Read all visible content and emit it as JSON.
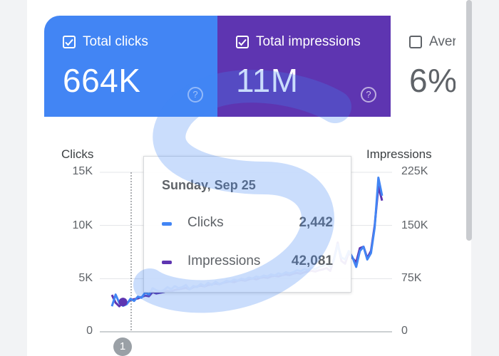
{
  "metrics": {
    "clicks": {
      "label": "Total clicks",
      "value": "664K",
      "checked": true,
      "color": "#4285f4"
    },
    "impressions": {
      "label": "Total impressions",
      "value": "11M",
      "checked": true,
      "color": "#5e35b1"
    },
    "position": {
      "label": "Aver",
      "value": "6%",
      "checked": false
    }
  },
  "help_glyph": "?",
  "chart": {
    "left_axis_title": "Clicks",
    "right_axis_title": "Impressions",
    "left_ticks": [
      "15K",
      "10K",
      "5K",
      "0"
    ],
    "right_ticks": [
      "225K",
      "150K",
      "75K",
      "0"
    ],
    "annotation_marker": "1"
  },
  "tooltip": {
    "date": "Sunday, Sep 25",
    "rows": [
      {
        "name": "Clicks",
        "value": "2,442",
        "color": "#4285f4"
      },
      {
        "name": "Impressions",
        "value": "42,081",
        "color": "#5e35b1"
      }
    ]
  },
  "chart_data": {
    "type": "line",
    "title": "",
    "ylabel": "Clicks",
    "y2label": "Impressions",
    "ylim": [
      0,
      15000
    ],
    "y2lim": [
      0,
      225000
    ],
    "grid": true,
    "series": [
      {
        "name": "Clicks",
        "axis": "left",
        "color": "#4285f4",
        "values": [
          2400,
          3500,
          2700,
          2442,
          2600,
          3100,
          2900,
          3300,
          3200,
          3700,
          3500,
          4100,
          3900,
          3800,
          3900,
          4200,
          4000,
          4300,
          4100,
          4200,
          4400,
          4000,
          4300,
          4200,
          4500,
          4300,
          4600,
          4400,
          4700,
          4500,
          4600,
          4800,
          4700,
          4900,
          4800,
          5000,
          4900,
          5100,
          5000,
          5200,
          5100,
          5300,
          5200,
          5400,
          5300,
          5500,
          5400,
          5600,
          5500,
          5600,
          5800,
          5700,
          5900,
          5800,
          6000,
          5900,
          6100,
          6200,
          6400,
          6100,
          6800,
          8200,
          7000,
          6800,
          7600,
          7000,
          6100,
          7600,
          8000,
          6800,
          7400,
          9800,
          14500,
          12800
        ]
      },
      {
        "name": "Impressions",
        "axis": "right",
        "color": "#5e35b1",
        "values": [
          52000,
          41000,
          36000,
          42081,
          40000,
          45000,
          46000,
          47000,
          49000,
          51000,
          50000,
          56000,
          54000,
          55000,
          56000,
          58000,
          57000,
          59000,
          60000,
          61000,
          62000,
          60000,
          63000,
          64000,
          65000,
          64000,
          66000,
          67000,
          68000,
          67000,
          69000,
          70000,
          71000,
          70000,
          72000,
          73000,
          72000,
          74000,
          75000,
          74000,
          76000,
          77000,
          76000,
          78000,
          79000,
          78000,
          80000,
          81000,
          80000,
          82000,
          83000,
          82000,
          84000,
          85000,
          86000,
          85000,
          87000,
          88000,
          90000,
          86000,
          103000,
          126000,
          100000,
          96000,
          112000,
          104000,
          98000,
          118000,
          120000,
          104000,
          114000,
          150000,
          205000,
          185000
        ]
      }
    ]
  }
}
